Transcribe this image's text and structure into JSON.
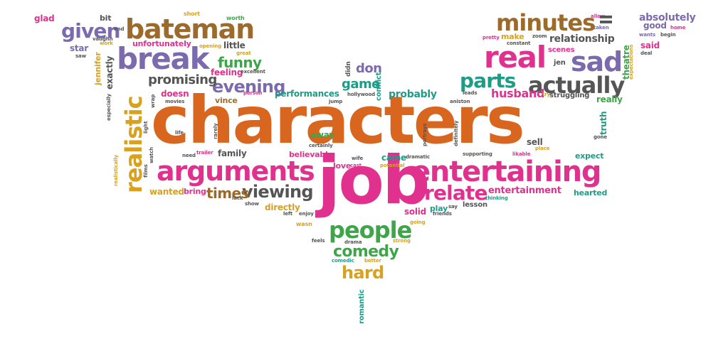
{
  "palette": {
    "orange": "#d9661f",
    "pink": "#e0318f",
    "purple": "#7b6aad",
    "green": "#3fa54a",
    "teal": "#1f9c86",
    "gold": "#d8a21e",
    "brown": "#9c6a2a",
    "gray": "#555555"
  },
  "words": [
    {
      "text": "characters",
      "color": "orange"
    },
    {
      "text": "job",
      "color": "pink"
    },
    {
      "text": "entertaining",
      "color": "pink"
    },
    {
      "text": "arguments",
      "color": "pink"
    },
    {
      "text": "break",
      "color": "purple"
    },
    {
      "text": "bateman",
      "color": "brown"
    },
    {
      "text": "real",
      "color": "pink"
    },
    {
      "text": "sad",
      "color": "purple"
    },
    {
      "text": "minutes",
      "color": "brown"
    },
    {
      "text": "actually",
      "color": "gray"
    },
    {
      "text": "people",
      "color": "green"
    },
    {
      "text": "realistic",
      "color": "gold"
    },
    {
      "text": "parts",
      "color": "teal"
    },
    {
      "text": "relate",
      "color": "pink"
    },
    {
      "text": "viewing",
      "color": "gray"
    },
    {
      "text": "given",
      "color": "purple"
    },
    {
      "text": "comedy",
      "color": "green"
    },
    {
      "text": "hard",
      "color": "gold"
    },
    {
      "text": "evening",
      "color": "purple"
    },
    {
      "text": "promising",
      "color": "gray"
    },
    {
      "text": "funny",
      "color": "green"
    },
    {
      "text": "times",
      "color": "brown"
    },
    {
      "text": "game",
      "color": "teal"
    },
    {
      "text": "don",
      "color": "purple"
    },
    {
      "text": "absolutely",
      "color": "purple"
    },
    {
      "text": "relationship",
      "color": "gray"
    },
    {
      "text": "husband",
      "color": "pink"
    },
    {
      "text": "probably",
      "color": "teal"
    },
    {
      "text": "performances",
      "color": "teal"
    },
    {
      "text": "entertainment",
      "color": "pink"
    },
    {
      "text": "glad",
      "color": "pink"
    },
    {
      "text": "bit",
      "color": "gray"
    },
    {
      "text": "unfortunately",
      "color": "pink"
    },
    {
      "text": "star",
      "color": "purple"
    },
    {
      "text": "little",
      "color": "gray"
    },
    {
      "text": "feeling",
      "color": "pink"
    },
    {
      "text": "exactly",
      "color": "gray"
    },
    {
      "text": "jennifer",
      "color": "gold"
    },
    {
      "text": "doesn",
      "color": "pink"
    },
    {
      "text": "vince",
      "color": "brown"
    },
    {
      "text": "family",
      "color": "gray"
    },
    {
      "text": "wanted",
      "color": "gold"
    },
    {
      "text": "bring",
      "color": "pink"
    },
    {
      "text": "directly",
      "color": "gold"
    },
    {
      "text": "solid",
      "color": "pink"
    },
    {
      "text": "play",
      "color": "teal"
    },
    {
      "text": "believable",
      "color": "pink"
    },
    {
      "text": "love",
      "color": "pink"
    },
    {
      "text": "came",
      "color": "teal"
    },
    {
      "text": "away",
      "color": "green"
    },
    {
      "text": "sell",
      "color": "gray"
    },
    {
      "text": "expect",
      "color": "teal"
    },
    {
      "text": "hearted",
      "color": "teal"
    },
    {
      "text": "really",
      "color": "green"
    },
    {
      "text": "truth",
      "color": "teal"
    },
    {
      "text": "theatre",
      "color": "green"
    },
    {
      "text": "said",
      "color": "pink"
    },
    {
      "text": "good",
      "color": "purple"
    },
    {
      "text": "make",
      "color": "gold"
    },
    {
      "text": "scenes",
      "color": "pink"
    },
    {
      "text": "jen",
      "color": "gray"
    },
    {
      "text": "struggling",
      "color": "gray"
    },
    {
      "text": "lesson",
      "color": "gray"
    },
    {
      "text": "romantic",
      "color": "teal"
    },
    {
      "text": "conflict",
      "color": "teal"
    },
    {
      "text": "didn",
      "color": "gray"
    },
    {
      "text": "short",
      "color": "gold"
    },
    {
      "text": "worth",
      "color": "green"
    },
    {
      "text": "opening",
      "color": "gold"
    },
    {
      "text": "great",
      "color": "gold"
    },
    {
      "text": "excellent",
      "color": "gray"
    },
    {
      "text": "person",
      "color": "pink"
    },
    {
      "text": "hollywood",
      "color": "gray"
    },
    {
      "text": "vaughn",
      "color": "gray"
    },
    {
      "text": "work",
      "color": "gold"
    },
    {
      "text": "end",
      "color": "gray"
    },
    {
      "text": "saw",
      "color": "gray"
    },
    {
      "text": "pretty",
      "color": "pink"
    },
    {
      "text": "constant",
      "color": "gray"
    },
    {
      "text": "zoom",
      "color": "gray"
    },
    {
      "text": "taken",
      "color": "purple"
    },
    {
      "text": "allow",
      "color": "pink"
    },
    {
      "text": "wants",
      "color": "purple"
    },
    {
      "text": "begin",
      "color": "gray"
    },
    {
      "text": "home",
      "color": "pink"
    },
    {
      "text": "deal",
      "color": "gray"
    },
    {
      "text": "expectations",
      "color": "gold"
    },
    {
      "text": "ll",
      "color": "gray"
    },
    {
      "text": "leads",
      "color": "gray"
    },
    {
      "text": "aniston",
      "color": "gray"
    },
    {
      "text": "try",
      "color": "gold"
    },
    {
      "text": "place",
      "color": "gold"
    },
    {
      "text": "gone",
      "color": "gray"
    },
    {
      "text": "definitely",
      "color": "gray"
    },
    {
      "text": "supporting",
      "color": "gray"
    },
    {
      "text": "likable",
      "color": "pink"
    },
    {
      "text": "thinking",
      "color": "teal"
    },
    {
      "text": "potential",
      "color": "gold"
    },
    {
      "text": "dramatic",
      "color": "gray"
    },
    {
      "text": "cast",
      "color": "pink"
    },
    {
      "text": "wife",
      "color": "gray"
    },
    {
      "text": "portrays",
      "color": "gray"
    },
    {
      "text": "friends",
      "color": "gray"
    },
    {
      "text": "going",
      "color": "gold"
    },
    {
      "text": "strong",
      "color": "gold"
    },
    {
      "text": "drama",
      "color": "gray"
    },
    {
      "text": "better",
      "color": "gold"
    },
    {
      "text": "comedic",
      "color": "teal"
    },
    {
      "text": "feels",
      "color": "gray"
    },
    {
      "text": "wasn",
      "color": "gold"
    },
    {
      "text": "left",
      "color": "gray"
    },
    {
      "text": "enjoy",
      "color": "gray"
    },
    {
      "text": "lack",
      "color": "gray"
    },
    {
      "text": "show",
      "color": "gray"
    },
    {
      "text": "certainly",
      "color": "gray"
    },
    {
      "text": "need",
      "color": "gray"
    },
    {
      "text": "trailer",
      "color": "pink"
    },
    {
      "text": "realistically",
      "color": "gold"
    },
    {
      "text": "films",
      "color": "gray"
    },
    {
      "text": "watch",
      "color": "gray"
    },
    {
      "text": "light",
      "color": "gray"
    },
    {
      "text": "wrap",
      "color": "gray"
    },
    {
      "text": "life",
      "color": "gray"
    },
    {
      "text": "movies",
      "color": "gray"
    },
    {
      "text": "especially",
      "color": "gray"
    },
    {
      "text": "rarely",
      "color": "gray"
    },
    {
      "text": "jump",
      "color": "gray"
    },
    {
      "text": "say",
      "color": "gray"
    }
  ]
}
